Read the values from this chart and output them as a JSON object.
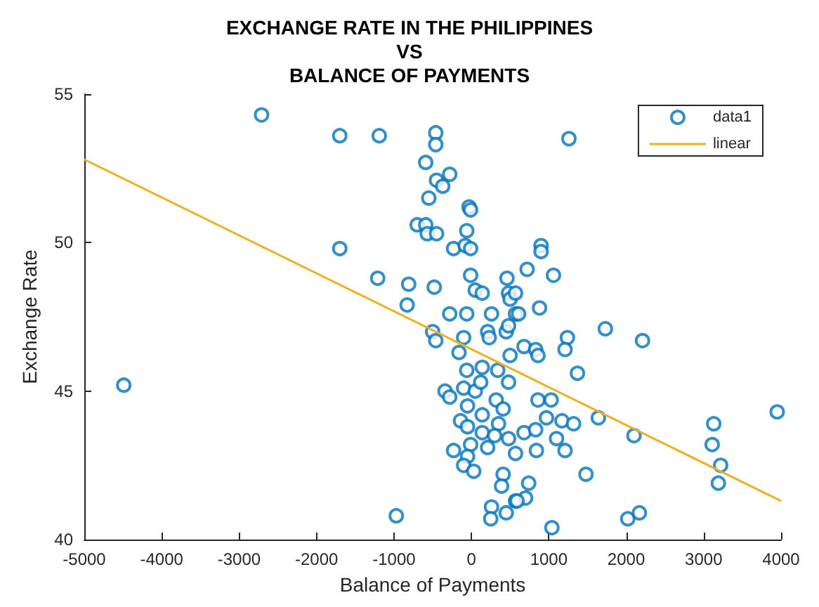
{
  "chart_data": {
    "type": "scatter",
    "title": "EXCHANGE RATE IN THE PHILIPPINES\nVS\nBALANCE OF PAYMENTS",
    "xlabel": "Balance of Payments",
    "ylabel": "Exchange Rate",
    "xlim": [
      -5000,
      4000
    ],
    "xticks": [
      -5000,
      -4000,
      -3000,
      -2000,
      -1000,
      0,
      1000,
      2000,
      3000,
      4000
    ],
    "ylim": [
      40,
      55
    ],
    "yticks": [
      40,
      45,
      50,
      55
    ],
    "grid": false,
    "legend": "top right",
    "marker": "circle",
    "series": [
      {
        "name": "data1",
        "color": "#0072bd",
        "x": [
          -4490,
          -2710,
          -1700,
          -1700,
          -1190,
          -970,
          -460,
          -460,
          -590,
          -450,
          -280,
          -370,
          -550,
          -30,
          -10,
          -700,
          -590,
          -570,
          -450,
          -60,
          -230,
          -80,
          -10,
          -1210,
          -810,
          -480,
          -830,
          -10,
          460,
          50,
          140,
          480,
          500,
          -280,
          -60,
          260,
          570,
          -500,
          -460,
          -160,
          -100,
          210,
          230,
          450,
          500,
          -60,
          140,
          340,
          480,
          -340,
          -280,
          -100,
          50,
          120,
          -50,
          320,
          410,
          140,
          -140,
          -50,
          140,
          350,
          300,
          480,
          -230,
          -10,
          210,
          570,
          -50,
          -100,
          30,
          410,
          390,
          260,
          450,
          250,
          570,
          1260,
          900,
          900,
          720,
          1060,
          570,
          610,
          880,
          480,
          1730,
          2210,
          1240,
          1210,
          680,
          830,
          860,
          1370,
          860,
          1030,
          970,
          1170,
          1320,
          1640,
          2100,
          3130,
          3110,
          3220,
          3190,
          3950,
          1100,
          1210,
          840,
          680,
          830,
          740,
          1480,
          700,
          590,
          1040,
          2020,
          2170
        ],
        "values": [
          45.2,
          54.3,
          53.6,
          49.8,
          53.6,
          40.8,
          53.7,
          53.3,
          52.7,
          52.1,
          52.3,
          51.9,
          51.5,
          51.2,
          51.1,
          50.6,
          50.6,
          50.3,
          50.3,
          50.4,
          49.8,
          49.9,
          49.8,
          48.8,
          48.6,
          48.5,
          47.9,
          48.9,
          48.8,
          48.4,
          48.3,
          48.3,
          48.1,
          47.6,
          47.6,
          47.6,
          47.6,
          47.0,
          46.7,
          46.3,
          46.8,
          47.0,
          46.8,
          47.0,
          46.2,
          45.7,
          45.8,
          45.7,
          45.3,
          45.0,
          44.8,
          45.1,
          45.0,
          45.3,
          44.5,
          44.7,
          44.4,
          44.2,
          44.0,
          43.8,
          43.6,
          43.9,
          43.5,
          43.4,
          43.0,
          43.2,
          43.1,
          42.9,
          42.8,
          42.5,
          42.3,
          42.2,
          41.8,
          41.1,
          40.9,
          40.7,
          41.3,
          53.5,
          49.9,
          49.7,
          49.1,
          48.9,
          48.3,
          47.6,
          47.8,
          47.2,
          47.1,
          46.7,
          46.8,
          46.4,
          46.5,
          46.4,
          46.2,
          45.6,
          44.7,
          44.7,
          44.1,
          44.0,
          43.9,
          44.1,
          43.5,
          43.9,
          43.2,
          42.5,
          41.9,
          44.3,
          43.4,
          43.0,
          43.0,
          43.6,
          43.7,
          41.9,
          42.2,
          41.4,
          41.3,
          40.4,
          40.7,
          40.9
        ]
      },
      {
        "name": "linear",
        "type": "line",
        "color": "#edb120",
        "marker": "none",
        "x": [
          -5000,
          4000
        ],
        "values": [
          52.8,
          41.3
        ]
      }
    ]
  }
}
